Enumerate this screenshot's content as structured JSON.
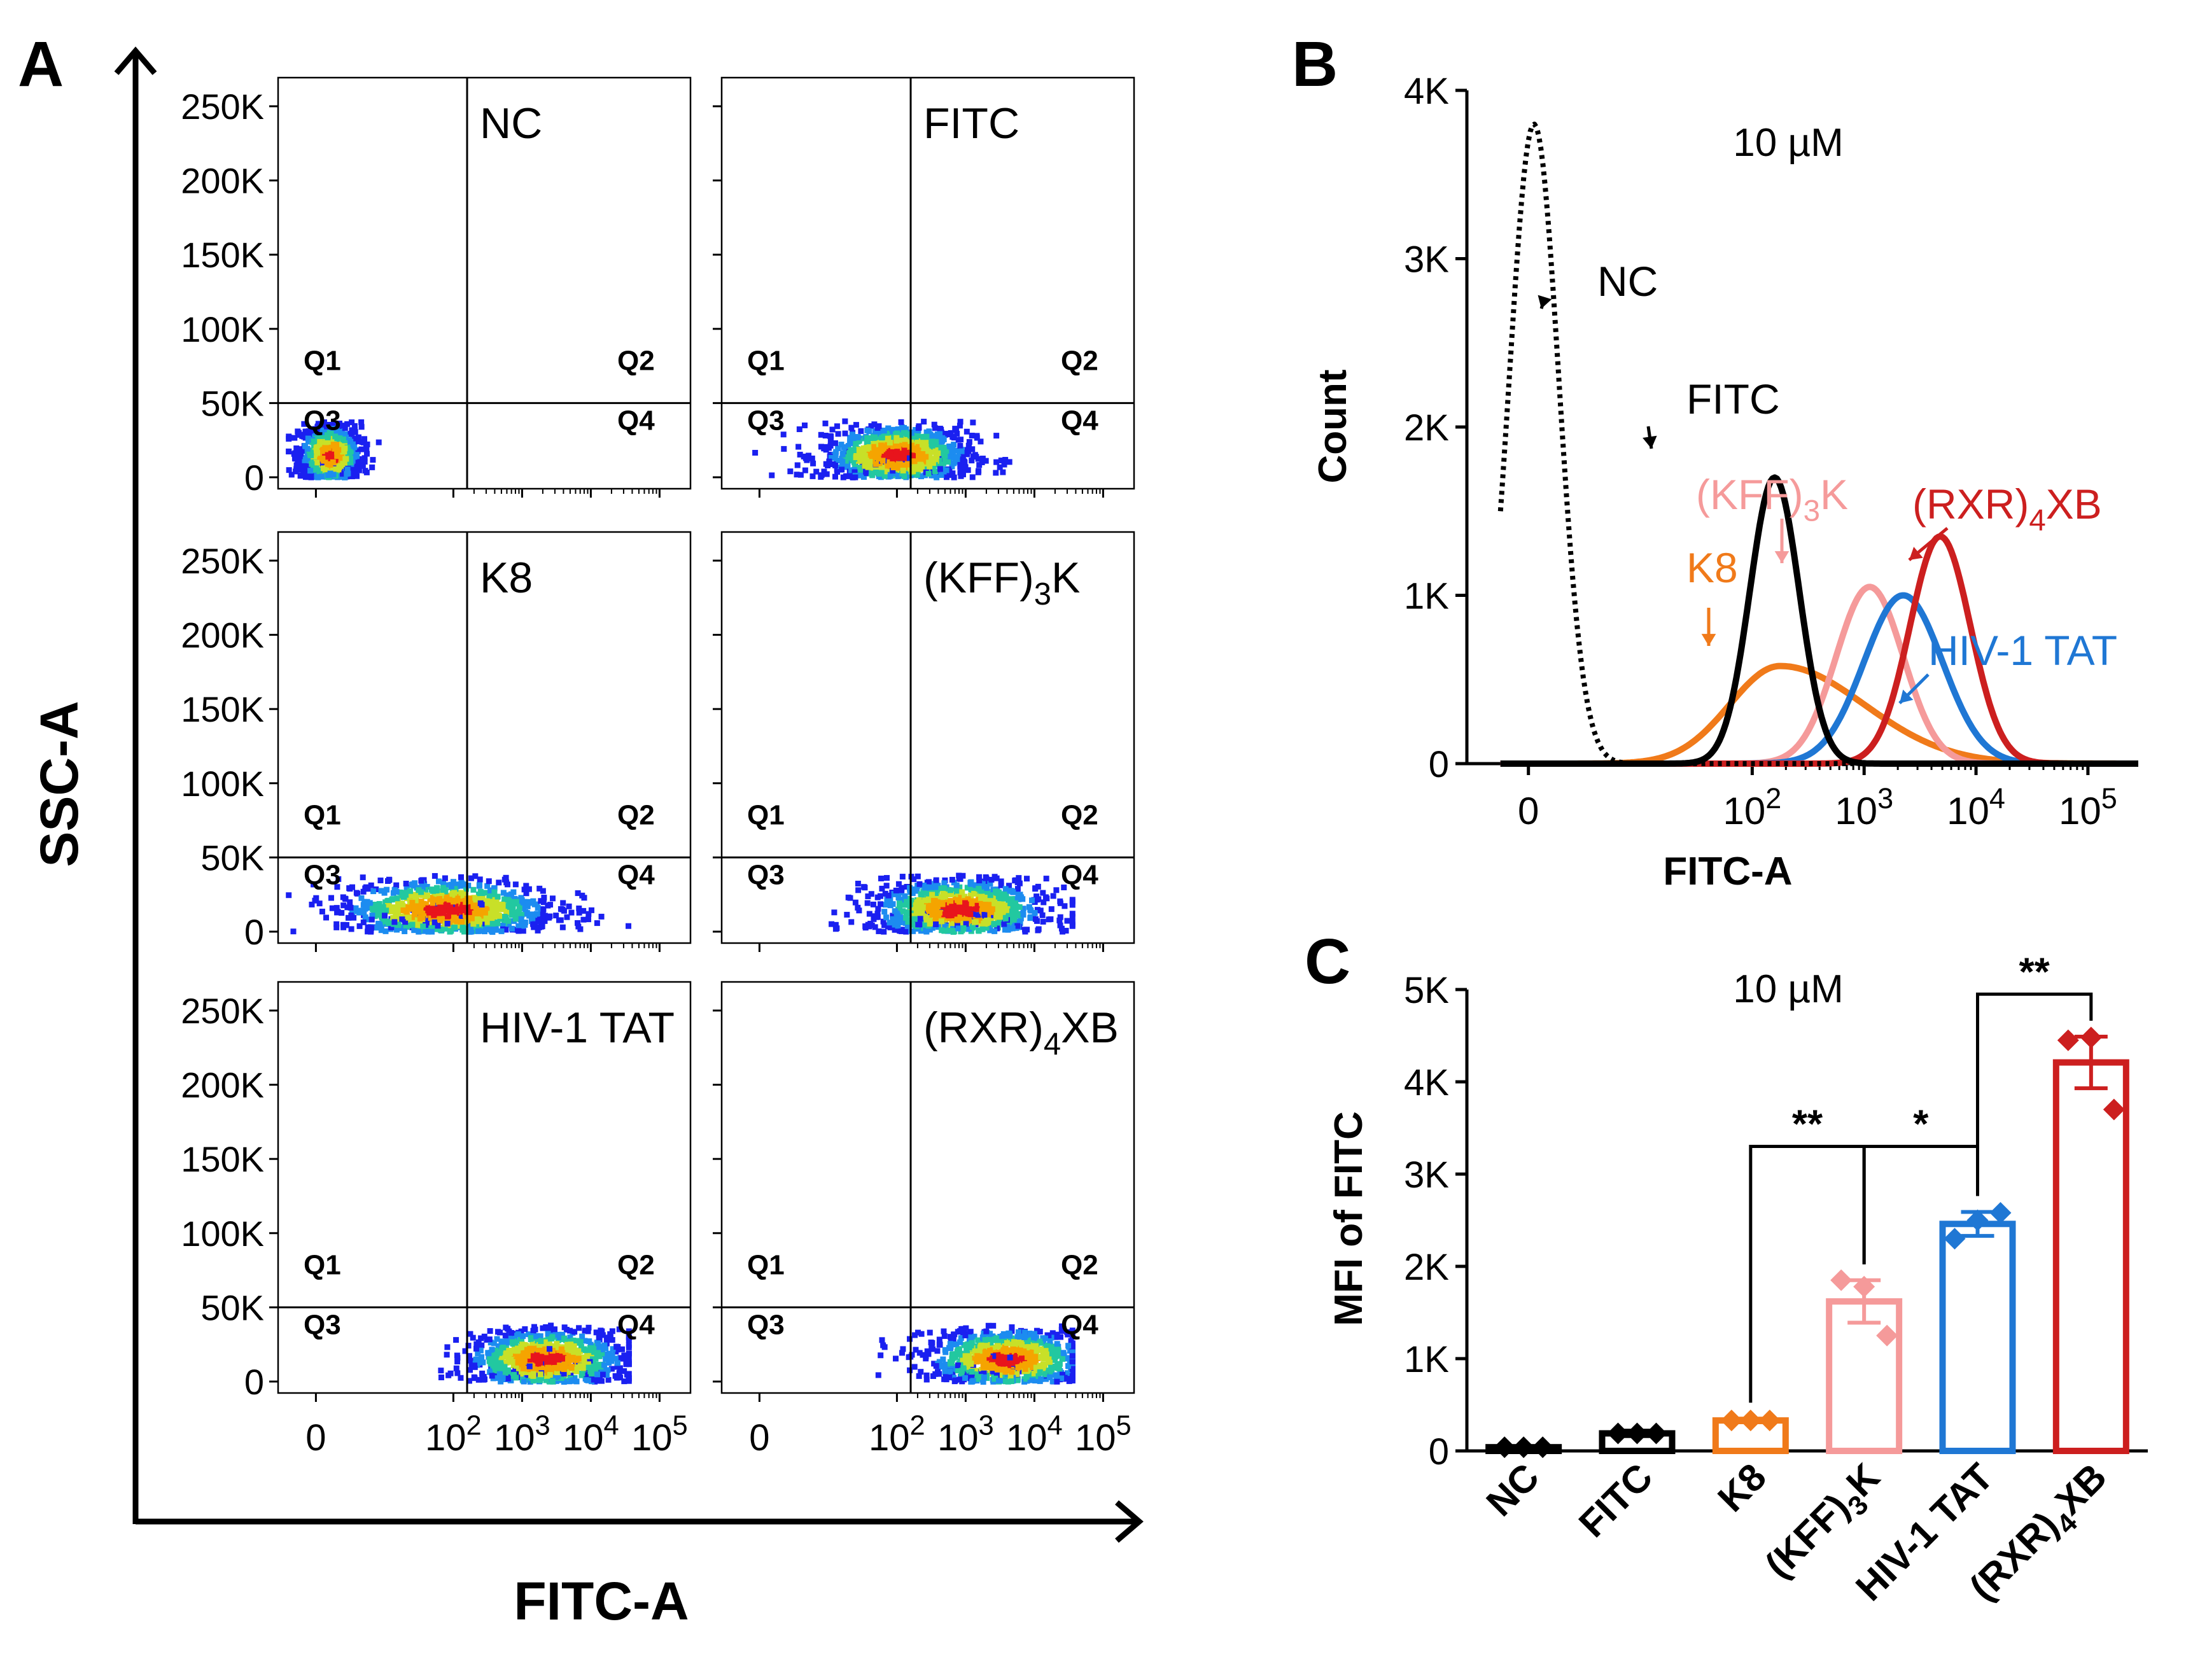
{
  "figure": {
    "panel_labels": [
      "A",
      "B",
      "C"
    ]
  },
  "panel_a": {
    "xlabel": "FITC-A",
    "ylabel": "SSC-A",
    "yticks": [
      {
        "v": 0,
        "label": "0"
      },
      {
        "v": 50000,
        "label": "50K"
      },
      {
        "v": 100000,
        "label": "100K"
      },
      {
        "v": 150000,
        "label": "150K"
      },
      {
        "v": 200000,
        "label": "200K"
      },
      {
        "v": 250000,
        "label": "250K"
      }
    ],
    "xticks": [
      {
        "e": 0,
        "base": "0",
        "exp": ""
      },
      {
        "e": 2,
        "base": "10",
        "exp": "2"
      },
      {
        "e": 3,
        "base": "10",
        "exp": "3"
      },
      {
        "e": 4,
        "base": "10",
        "exp": "4"
      },
      {
        "e": 5,
        "base": "10",
        "exp": "5"
      }
    ],
    "quadrant_labels": [
      "Q1",
      "Q2",
      "Q3",
      "Q4"
    ],
    "gate": {
      "x_log": 2.2,
      "y": 50000
    },
    "plots": [
      {
        "name": "NC",
        "base": "NC",
        "sub": "",
        "rest": "",
        "cloud": {
          "x_log": 0.2,
          "spread": 0.45,
          "y": 15000
        }
      },
      {
        "name": "FITC",
        "base": "FITC",
        "sub": "",
        "rest": "",
        "cloud": {
          "x_log": 2.0,
          "spread": 1.1,
          "y": 15000
        }
      },
      {
        "name": "K8",
        "base": "K8",
        "sub": "",
        "rest": "",
        "cloud": {
          "x_log": 1.9,
          "spread": 1.6,
          "y": 15000
        }
      },
      {
        "name": "(KFF)3K",
        "base": "(KFF)",
        "sub": "3",
        "rest": "K",
        "cloud": {
          "x_log": 2.9,
          "spread": 1.3,
          "y": 15000
        }
      },
      {
        "name": "HIV-1 TAT",
        "base": "HIV-1 TAT",
        "sub": "",
        "rest": "",
        "cloud": {
          "x_log": 3.35,
          "spread": 1.2,
          "y": 15000
        }
      },
      {
        "name": "(RXR)4XB",
        "base": "(RXR)",
        "sub": "4",
        "rest": "XB",
        "cloud": {
          "x_log": 3.6,
          "spread": 1.2,
          "y": 15000
        }
      }
    ]
  },
  "chart_data": [
    {
      "type": "line",
      "panel": "B",
      "title": "10 µM",
      "xlabel": "FITC-A",
      "ylabel": "Count",
      "x_scale": "biexponential (log10 FITC-A)",
      "ylim": [
        0,
        4000
      ],
      "yticks": [
        {
          "v": 0,
          "label": "0"
        },
        {
          "v": 1000,
          "label": "1K"
        },
        {
          "v": 2000,
          "label": "2K"
        },
        {
          "v": 3000,
          "label": "3K"
        },
        {
          "v": 4000,
          "label": "4K"
        }
      ],
      "xticks": [
        {
          "e": 0,
          "base": "0",
          "exp": ""
        },
        {
          "e": 2,
          "base": "10",
          "exp": "2"
        },
        {
          "e": 3,
          "base": "10",
          "exp": "3"
        },
        {
          "e": 4,
          "base": "10",
          "exp": "4"
        },
        {
          "e": 5,
          "base": "10",
          "exp": "5"
        }
      ],
      "series": [
        {
          "name": "NC",
          "color": "#000000",
          "dashed": true,
          "peak_log": 0.05,
          "peak_count": 3800,
          "width": 0.22
        },
        {
          "name": "FITC",
          "color": "#000000",
          "dashed": false,
          "peak_log": 2.2,
          "peak_count": 1700,
          "width": 0.22
        },
        {
          "name": "K8",
          "color": "#f07a1a",
          "dashed": false,
          "peak_log": 2.25,
          "peak_count": 580,
          "width": 0.62
        },
        {
          "name": "(KFF)3K",
          "color": "#f59a9a",
          "dashed": false,
          "peak_log": 3.05,
          "peak_count": 1050,
          "width": 0.3
        },
        {
          "name": "HIV-1 TAT",
          "color": "#1f77d4",
          "dashed": false,
          "peak_log": 3.35,
          "peak_count": 1000,
          "width": 0.35
        },
        {
          "name": "(RXR)4XB",
          "color": "#cc1f1f",
          "dashed": false,
          "peak_log": 3.68,
          "peak_count": 1350,
          "width": 0.27
        }
      ],
      "labels": [
        {
          "series": "NC",
          "base": "NC",
          "sub": "",
          "rest": ""
        },
        {
          "series": "FITC",
          "base": "FITC",
          "sub": "",
          "rest": ""
        },
        {
          "series": "(KFF)3K",
          "base": "(KFF)",
          "sub": "3",
          "rest": "K"
        },
        {
          "series": "K8",
          "base": "K8",
          "sub": "",
          "rest": ""
        },
        {
          "series": "(RXR)4XB",
          "base": "(RXR)",
          "sub": "4",
          "rest": "XB"
        },
        {
          "series": "HIV-1 TAT",
          "base": "HIV-1 TAT",
          "sub": "",
          "rest": ""
        }
      ]
    },
    {
      "type": "bar",
      "panel": "C",
      "title": "10 µM",
      "ylabel": "MFI of FITC",
      "xlabel": "",
      "ylim": [
        0,
        5000
      ],
      "yticks": [
        {
          "v": 0,
          "label": "0"
        },
        {
          "v": 1000,
          "label": "1K"
        },
        {
          "v": 2000,
          "label": "2K"
        },
        {
          "v": 3000,
          "label": "3K"
        },
        {
          "v": 4000,
          "label": "4K"
        },
        {
          "v": 5000,
          "label": "5K"
        }
      ],
      "categories": [
        {
          "name": "NC",
          "base": "NC",
          "sub": "",
          "rest": ""
        },
        {
          "name": "FITC",
          "base": "FITC",
          "sub": "",
          "rest": ""
        },
        {
          "name": "K8",
          "base": "K8",
          "sub": "",
          "rest": ""
        },
        {
          "name": "(KFF)3K",
          "base": "(KFF)",
          "sub": "3",
          "rest": "K"
        },
        {
          "name": "HIV-1 TAT",
          "base": "HIV-1 TAT",
          "sub": "",
          "rest": ""
        },
        {
          "name": "(RXR)4XB",
          "base": "(RXR)",
          "sub": "4",
          "rest": "XB"
        }
      ],
      "values": [
        40,
        190,
        330,
        1620,
        2460,
        4210
      ],
      "sem": [
        10,
        30,
        20,
        230,
        130,
        280
      ],
      "points": [
        [
          40,
          40,
          40
        ],
        [
          190,
          190,
          190
        ],
        [
          330,
          330,
          330
        ],
        [
          1850,
          1250,
          1780
        ],
        [
          2300,
          2580,
          2500
        ],
        [
          4450,
          3700,
          4480
        ]
      ],
      "colors": [
        "#000000",
        "#000000",
        "#f07a1a",
        "#f59a9a",
        "#1f77d4",
        "#cc1f1f"
      ],
      "significance": [
        {
          "from": 2,
          "to": 3,
          "label": "**",
          "level": 3300
        },
        {
          "from": 3,
          "to": 4,
          "label": "*",
          "level": 3300
        },
        {
          "from": 4,
          "to": 5,
          "label": "**",
          "level": 4950
        }
      ]
    }
  ]
}
